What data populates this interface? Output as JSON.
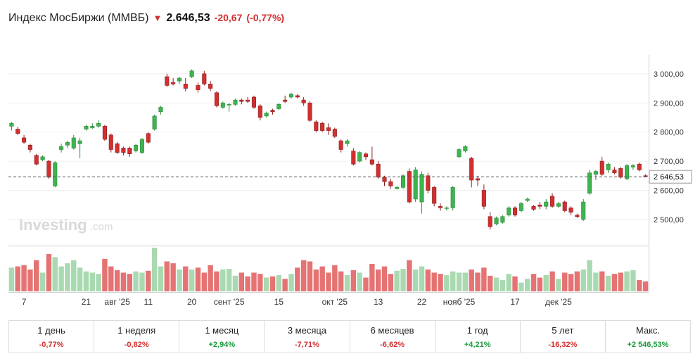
{
  "header": {
    "title": "Индекс МосБиржи (ММВБ)",
    "price": "2.646,53",
    "change": "-20,67",
    "change_pct": "(-0,77%)"
  },
  "watermark": {
    "brand": "Investing",
    "suffix": ".com"
  },
  "colors": {
    "up": "#3fb34f",
    "down": "#d32f2f",
    "vol_up": "#a9d9b0",
    "vol_down": "#e57373"
  },
  "chart_data": {
    "type": "candlestick",
    "title": "Индекс МосБиржи (ММВБ)",
    "ylim": [
      2420,
      3060
    ],
    "y_ticks": [
      {
        "value": 3000,
        "label": "3 000,00"
      },
      {
        "value": 2900,
        "label": "2 900,00"
      },
      {
        "value": 2800,
        "label": "2 800,00"
      },
      {
        "value": 2700,
        "label": "2 700,00"
      },
      {
        "value": 2600,
        "label": "2 600,00"
      },
      {
        "value": 2500,
        "label": "2 500,00"
      }
    ],
    "x_ticks": [
      {
        "index": 2,
        "label": "7"
      },
      {
        "index": 12,
        "label": "21"
      },
      {
        "index": 17,
        "label": "авг '25"
      },
      {
        "index": 22,
        "label": "11"
      },
      {
        "index": 29,
        "label": "20"
      },
      {
        "index": 35,
        "label": "сент '25"
      },
      {
        "index": 43,
        "label": "15"
      },
      {
        "index": 52,
        "label": "окт '25"
      },
      {
        "index": 59,
        "label": "13"
      },
      {
        "index": 66,
        "label": "22"
      },
      {
        "index": 72,
        "label": "нояб '25"
      },
      {
        "index": 81,
        "label": "17"
      },
      {
        "index": 88,
        "label": "дек '25"
      }
    ],
    "current": {
      "value": 2646.53,
      "label": "2 646,53"
    },
    "candles": [
      {
        "o": 2820,
        "h": 2835,
        "l": 2805,
        "c": 2830,
        "v": 38
      },
      {
        "o": 2810,
        "h": 2818,
        "l": 2790,
        "c": 2795,
        "v": 40
      },
      {
        "o": 2780,
        "h": 2790,
        "l": 2760,
        "c": 2765,
        "v": 42
      },
      {
        "o": 2755,
        "h": 2760,
        "l": 2730,
        "c": 2740,
        "v": 35
      },
      {
        "o": 2720,
        "h": 2725,
        "l": 2685,
        "c": 2690,
        "v": 50
      },
      {
        "o": 2705,
        "h": 2720,
        "l": 2700,
        "c": 2715,
        "v": 30
      },
      {
        "o": 2700,
        "h": 2705,
        "l": 2640,
        "c": 2645,
        "v": 60
      },
      {
        "o": 2615,
        "h": 2700,
        "l": 2610,
        "c": 2695,
        "v": 55
      },
      {
        "o": 2740,
        "h": 2760,
        "l": 2730,
        "c": 2750,
        "v": 40
      },
      {
        "o": 2755,
        "h": 2770,
        "l": 2745,
        "c": 2765,
        "v": 45
      },
      {
        "o": 2745,
        "h": 2790,
        "l": 2740,
        "c": 2780,
        "v": 50
      },
      {
        "o": 2760,
        "h": 2780,
        "l": 2710,
        "c": 2770,
        "v": 38
      },
      {
        "o": 2810,
        "h": 2825,
        "l": 2805,
        "c": 2820,
        "v": 32
      },
      {
        "o": 2815,
        "h": 2830,
        "l": 2810,
        "c": 2820,
        "v": 30
      },
      {
        "o": 2820,
        "h": 2840,
        "l": 2815,
        "c": 2830,
        "v": 28
      },
      {
        "o": 2820,
        "h": 2825,
        "l": 2770,
        "c": 2775,
        "v": 52
      },
      {
        "o": 2790,
        "h": 2795,
        "l": 2730,
        "c": 2740,
        "v": 40
      },
      {
        "o": 2760,
        "h": 2765,
        "l": 2725,
        "c": 2730,
        "v": 34
      },
      {
        "o": 2745,
        "h": 2750,
        "l": 2720,
        "c": 2730,
        "v": 30
      },
      {
        "o": 2745,
        "h": 2750,
        "l": 2715,
        "c": 2725,
        "v": 28
      },
      {
        "o": 2735,
        "h": 2760,
        "l": 2730,
        "c": 2755,
        "v": 32
      },
      {
        "o": 2730,
        "h": 2780,
        "l": 2725,
        "c": 2775,
        "v": 30
      },
      {
        "o": 2795,
        "h": 2800,
        "l": 2760,
        "c": 2765,
        "v": 33
      },
      {
        "o": 2810,
        "h": 2860,
        "l": 2805,
        "c": 2855,
        "v": 70
      },
      {
        "o": 2870,
        "h": 2890,
        "l": 2860,
        "c": 2885,
        "v": 40
      },
      {
        "o": 2990,
        "h": 3000,
        "l": 2955,
        "c": 2960,
        "v": 48
      },
      {
        "o": 2970,
        "h": 2985,
        "l": 2960,
        "c": 2965,
        "v": 45
      },
      {
        "o": 2975,
        "h": 2990,
        "l": 2965,
        "c": 2985,
        "v": 35
      },
      {
        "o": 2965,
        "h": 2985,
        "l": 2940,
        "c": 2950,
        "v": 40
      },
      {
        "o": 2990,
        "h": 3015,
        "l": 2985,
        "c": 3010,
        "v": 35
      },
      {
        "o": 2960,
        "h": 2970,
        "l": 2935,
        "c": 2945,
        "v": 38
      },
      {
        "o": 3000,
        "h": 3010,
        "l": 2960,
        "c": 2965,
        "v": 30
      },
      {
        "o": 2965,
        "h": 2975,
        "l": 2940,
        "c": 2950,
        "v": 42
      },
      {
        "o": 2935,
        "h": 2940,
        "l": 2885,
        "c": 2890,
        "v": 32
      },
      {
        "o": 2885,
        "h": 2905,
        "l": 2880,
        "c": 2900,
        "v": 35
      },
      {
        "o": 2895,
        "h": 2900,
        "l": 2870,
        "c": 2895,
        "v": 36
      },
      {
        "o": 2895,
        "h": 2915,
        "l": 2890,
        "c": 2910,
        "v": 25
      },
      {
        "o": 2910,
        "h": 2915,
        "l": 2895,
        "c": 2905,
        "v": 30
      },
      {
        "o": 2910,
        "h": 2920,
        "l": 2900,
        "c": 2905,
        "v": 24
      },
      {
        "o": 2920,
        "h": 2925,
        "l": 2880,
        "c": 2885,
        "v": 30
      },
      {
        "o": 2890,
        "h": 2895,
        "l": 2840,
        "c": 2850,
        "v": 28
      },
      {
        "o": 2855,
        "h": 2870,
        "l": 2850,
        "c": 2865,
        "v": 22
      },
      {
        "o": 2875,
        "h": 2880,
        "l": 2860,
        "c": 2870,
        "v": 24
      },
      {
        "o": 2880,
        "h": 2900,
        "l": 2875,
        "c": 2895,
        "v": 26
      },
      {
        "o": 2910,
        "h": 2925,
        "l": 2900,
        "c": 2905,
        "v": 20
      },
      {
        "o": 2920,
        "h": 2935,
        "l": 2915,
        "c": 2930,
        "v": 28
      },
      {
        "o": 2925,
        "h": 2930,
        "l": 2915,
        "c": 2920,
        "v": 38
      },
      {
        "o": 2910,
        "h": 2920,
        "l": 2890,
        "c": 2900,
        "v": 50
      },
      {
        "o": 2900,
        "h": 2905,
        "l": 2835,
        "c": 2840,
        "v": 48
      },
      {
        "o": 2835,
        "h": 2840,
        "l": 2800,
        "c": 2805,
        "v": 35
      },
      {
        "o": 2830,
        "h": 2835,
        "l": 2800,
        "c": 2805,
        "v": 40
      },
      {
        "o": 2815,
        "h": 2830,
        "l": 2790,
        "c": 2805,
        "v": 30
      },
      {
        "o": 2810,
        "h": 2815,
        "l": 2780,
        "c": 2785,
        "v": 42
      },
      {
        "o": 2770,
        "h": 2775,
        "l": 2730,
        "c": 2740,
        "v": 32
      },
      {
        "o": 2760,
        "h": 2775,
        "l": 2750,
        "c": 2770,
        "v": 26
      },
      {
        "o": 2735,
        "h": 2745,
        "l": 2685,
        "c": 2690,
        "v": 34
      },
      {
        "o": 2700,
        "h": 2735,
        "l": 2695,
        "c": 2730,
        "v": 30
      },
      {
        "o": 2725,
        "h": 2730,
        "l": 2705,
        "c": 2715,
        "v": 22
      },
      {
        "o": 2705,
        "h": 2750,
        "l": 2685,
        "c": 2690,
        "v": 44
      },
      {
        "o": 2690,
        "h": 2700,
        "l": 2640,
        "c": 2645,
        "v": 35
      },
      {
        "o": 2645,
        "h": 2650,
        "l": 2615,
        "c": 2630,
        "v": 40
      },
      {
        "o": 2630,
        "h": 2640,
        "l": 2605,
        "c": 2615,
        "v": 28
      },
      {
        "o": 2605,
        "h": 2615,
        "l": 2610,
        "c": 2610,
        "v": 33
      },
      {
        "o": 2610,
        "h": 2655,
        "l": 2605,
        "c": 2650,
        "v": 36
      },
      {
        "o": 2665,
        "h": 2675,
        "l": 2555,
        "c": 2560,
        "v": 50
      },
      {
        "o": 2570,
        "h": 2680,
        "l": 2560,
        "c": 2670,
        "v": 35
      },
      {
        "o": 2560,
        "h": 2665,
        "l": 2520,
        "c": 2655,
        "v": 40
      },
      {
        "o": 2650,
        "h": 2660,
        "l": 2590,
        "c": 2600,
        "v": 35
      },
      {
        "o": 2610,
        "h": 2615,
        "l": 2545,
        "c": 2555,
        "v": 30
      },
      {
        "o": 2545,
        "h": 2555,
        "l": 2530,
        "c": 2540,
        "v": 28
      },
      {
        "o": 2540,
        "h": 2545,
        "l": 2530,
        "c": 2540,
        "v": 26
      },
      {
        "o": 2540,
        "h": 2615,
        "l": 2530,
        "c": 2610,
        "v": 32
      },
      {
        "o": 2715,
        "h": 2745,
        "l": 2710,
        "c": 2740,
        "v": 30
      },
      {
        "o": 2735,
        "h": 2755,
        "l": 2730,
        "c": 2750,
        "v": 30
      },
      {
        "o": 2710,
        "h": 2715,
        "l": 2610,
        "c": 2635,
        "v": 35
      },
      {
        "o": 2640,
        "h": 2650,
        "l": 2615,
        "c": 2635,
        "v": 30
      },
      {
        "o": 2600,
        "h": 2620,
        "l": 2535,
        "c": 2545,
        "v": 38
      },
      {
        "o": 2510,
        "h": 2525,
        "l": 2465,
        "c": 2475,
        "v": 25
      },
      {
        "o": 2485,
        "h": 2510,
        "l": 2480,
        "c": 2505,
        "v": 22
      },
      {
        "o": 2490,
        "h": 2515,
        "l": 2485,
        "c": 2510,
        "v": 18
      },
      {
        "o": 2515,
        "h": 2545,
        "l": 2510,
        "c": 2540,
        "v": 28
      },
      {
        "o": 2540,
        "h": 2545,
        "l": 2510,
        "c": 2515,
        "v": 24
      },
      {
        "o": 2530,
        "h": 2560,
        "l": 2525,
        "c": 2555,
        "v": 14
      },
      {
        "o": 2565,
        "h": 2575,
        "l": 2560,
        "c": 2570,
        "v": 20
      },
      {
        "o": 2545,
        "h": 2550,
        "l": 2530,
        "c": 2535,
        "v": 28
      },
      {
        "o": 2550,
        "h": 2560,
        "l": 2535,
        "c": 2545,
        "v": 22
      },
      {
        "o": 2545,
        "h": 2570,
        "l": 2535,
        "c": 2560,
        "v": 26
      },
      {
        "o": 2580,
        "h": 2590,
        "l": 2540,
        "c": 2545,
        "v": 32
      },
      {
        "o": 2545,
        "h": 2560,
        "l": 2540,
        "c": 2555,
        "v": 20
      },
      {
        "o": 2560,
        "h": 2565,
        "l": 2525,
        "c": 2530,
        "v": 30
      },
      {
        "o": 2540,
        "h": 2545,
        "l": 2515,
        "c": 2525,
        "v": 28
      },
      {
        "o": 2515,
        "h": 2520,
        "l": 2505,
        "c": 2510,
        "v": 32
      },
      {
        "o": 2500,
        "h": 2570,
        "l": 2495,
        "c": 2560,
        "v": 35
      },
      {
        "o": 2590,
        "h": 2670,
        "l": 2585,
        "c": 2660,
        "v": 50
      },
      {
        "o": 2655,
        "h": 2670,
        "l": 2635,
        "c": 2665,
        "v": 30
      },
      {
        "o": 2700,
        "h": 2715,
        "l": 2650,
        "c": 2655,
        "v": 32
      },
      {
        "o": 2670,
        "h": 2695,
        "l": 2660,
        "c": 2690,
        "v": 25
      },
      {
        "o": 2670,
        "h": 2680,
        "l": 2655,
        "c": 2660,
        "v": 28
      },
      {
        "o": 2675,
        "h": 2680,
        "l": 2640,
        "c": 2645,
        "v": 30
      },
      {
        "o": 2640,
        "h": 2690,
        "l": 2635,
        "c": 2685,
        "v": 32
      },
      {
        "o": 2680,
        "h": 2690,
        "l": 2670,
        "c": 2685,
        "v": 34
      },
      {
        "o": 2690,
        "h": 2695,
        "l": 2665,
        "c": 2670,
        "v": 18
      },
      {
        "o": 2650,
        "h": 2655,
        "l": 2645,
        "c": 2647,
        "v": 16
      }
    ]
  },
  "periods": [
    {
      "label": "1 день",
      "value": "-0,77%",
      "sign": "neg"
    },
    {
      "label": "1 неделя",
      "value": "-0,82%",
      "sign": "neg"
    },
    {
      "label": "1 месяц",
      "value": "+2,94%",
      "sign": "pos"
    },
    {
      "label": "3 месяца",
      "value": "-7,71%",
      "sign": "neg"
    },
    {
      "label": "6 месяцев",
      "value": "-6,62%",
      "sign": "neg"
    },
    {
      "label": "1 год",
      "value": "+4,21%",
      "sign": "pos"
    },
    {
      "label": "5 лет",
      "value": "-16,32%",
      "sign": "neg"
    },
    {
      "label": "Макс.",
      "value": "+2 546,53%",
      "sign": "pos"
    }
  ]
}
